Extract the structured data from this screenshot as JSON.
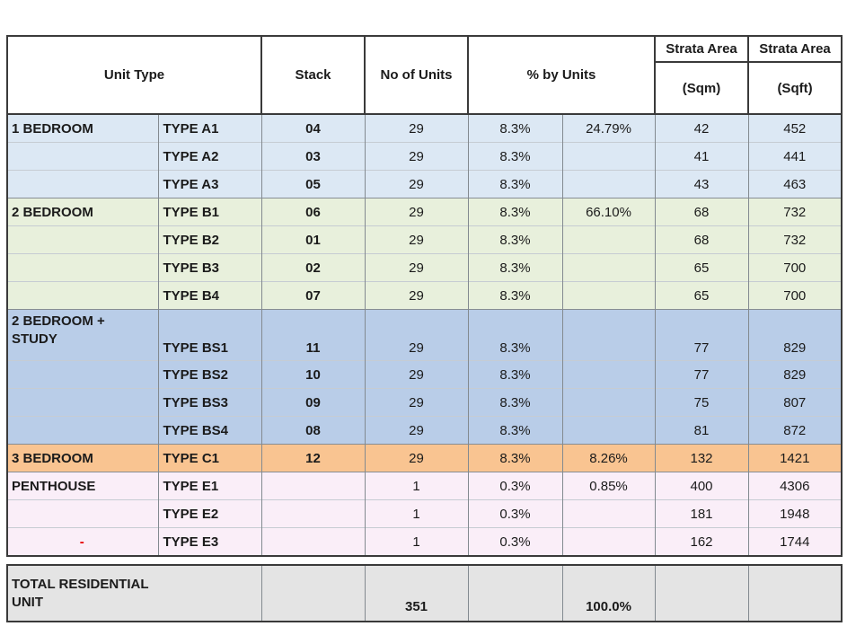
{
  "table": {
    "header": {
      "unit_type": "Unit Type",
      "stack": "Stack",
      "no_of_units": "No of Units",
      "pct_by_units": "% by Units",
      "strata_area": "Strata Area",
      "sqm": "(Sqm)",
      "sqft": "(Sqft)"
    },
    "red_dash_color": "#e60000",
    "sections": [
      {
        "name": "1 BEDROOM",
        "color": "#dce8f4",
        "rows": [
          {
            "category": "1 BEDROOM",
            "type": "TYPE A1",
            "stack": "04",
            "units": "29",
            "pct1": "8.3%",
            "pct2": "24.79%",
            "sqm": "42",
            "sqft": "452"
          },
          {
            "category": "",
            "type": "TYPE A2",
            "stack": "03",
            "units": "29",
            "pct1": "8.3%",
            "pct2": "",
            "sqm": "41",
            "sqft": "441"
          },
          {
            "category": "",
            "type": "TYPE A3",
            "stack": "05",
            "units": "29",
            "pct1": "8.3%",
            "pct2": "",
            "sqm": "43",
            "sqft": "463"
          }
        ]
      },
      {
        "name": "2 BEDROOM",
        "color": "#e8f0dc",
        "rows": [
          {
            "category": "2 BEDROOM",
            "type": "TYPE B1",
            "stack": "06",
            "units": "29",
            "pct1": "8.3%",
            "pct2": "66.10%",
            "sqm": "68",
            "sqft": "732"
          },
          {
            "category": "",
            "type": "TYPE B2",
            "stack": "01",
            "units": "29",
            "pct1": "8.3%",
            "pct2": "",
            "sqm": "68",
            "sqft": "732"
          },
          {
            "category": "",
            "type": "TYPE B3",
            "stack": "02",
            "units": "29",
            "pct1": "8.3%",
            "pct2": "",
            "sqm": "65",
            "sqft": "700"
          },
          {
            "category": "",
            "type": "TYPE B4",
            "stack": "07",
            "units": "29",
            "pct1": "8.3%",
            "pct2": "",
            "sqm": "65",
            "sqft": "700"
          }
        ]
      },
      {
        "name": "2 BEDROOM + STUDY",
        "color": "#b9cde8",
        "rows": [
          {
            "category": "2 BEDROOM +\nSTUDY",
            "type": "TYPE BS1",
            "stack": "11",
            "units": "29",
            "pct1": "8.3%",
            "pct2": "",
            "sqm": "77",
            "sqft": "829",
            "tall": true
          },
          {
            "category": "",
            "type": "TYPE BS2",
            "stack": "10",
            "units": "29",
            "pct1": "8.3%",
            "pct2": "",
            "sqm": "77",
            "sqft": "829"
          },
          {
            "category": "",
            "type": "TYPE BS3",
            "stack": "09",
            "units": "29",
            "pct1": "8.3%",
            "pct2": "",
            "sqm": "75",
            "sqft": "807"
          },
          {
            "category": "",
            "type": "TYPE BS4",
            "stack": "08",
            "units": "29",
            "pct1": "8.3%",
            "pct2": "",
            "sqm": "81",
            "sqft": "872"
          }
        ]
      },
      {
        "name": "3 BEDROOM",
        "color": "#f9c491",
        "rows": [
          {
            "category": "3 BEDROOM",
            "type": "TYPE C1",
            "stack": "12",
            "units": "29",
            "pct1": "8.3%",
            "pct2": "8.26%",
            "sqm": "132",
            "sqft": "1421"
          }
        ]
      },
      {
        "name": "PENTHOUSE",
        "color": "#faeef8",
        "rows": [
          {
            "category": "PENTHOUSE",
            "type": "TYPE E1",
            "stack": "",
            "units": "1",
            "pct1": "0.3%",
            "pct2": "0.85%",
            "sqm": "400",
            "sqft": "4306"
          },
          {
            "category": "",
            "type": "TYPE E2",
            "stack": "",
            "units": "1",
            "pct1": "0.3%",
            "pct2": "",
            "sqm": "181",
            "sqft": "1948"
          },
          {
            "category": "-",
            "type": "TYPE E3",
            "stack": "",
            "units": "1",
            "pct1": "0.3%",
            "pct2": "",
            "sqm": "162",
            "sqft": "1744",
            "cat_red": true
          }
        ]
      }
    ],
    "total": {
      "label": "TOTAL RESIDENTIAL\nUNIT",
      "no_of_units": "351",
      "pct": "100.0%",
      "color": "#e4e4e4"
    }
  }
}
